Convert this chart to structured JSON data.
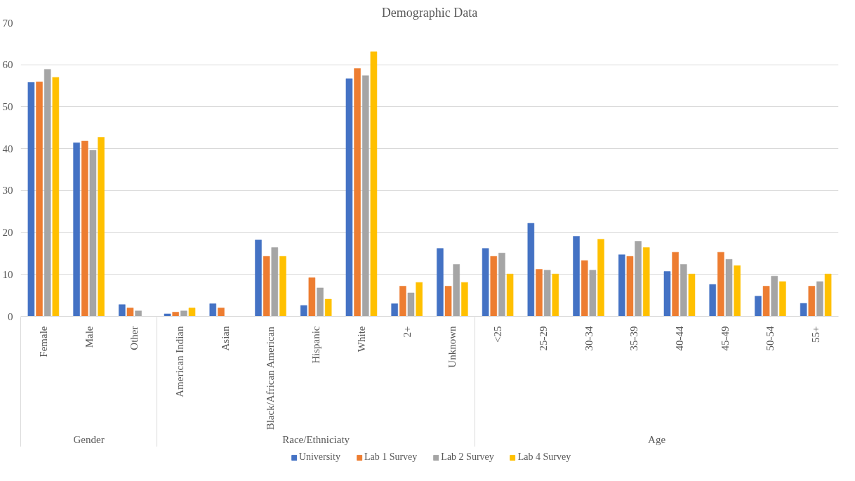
{
  "chart_data": {
    "type": "bar",
    "title": "Demographic Data",
    "categories": [
      "Female",
      "Male",
      "Other",
      "American Indian",
      "Asian",
      "Black/African American",
      "Hispanic",
      "White",
      "2+",
      "Unknown",
      "<25",
      "25-29",
      "30-34",
      "35-39",
      "40-44",
      "45-49",
      "50-54",
      "55+"
    ],
    "series": [
      {
        "name": "University",
        "color": "#4472c4",
        "values": [
          55.8,
          41.4,
          2.8,
          0.6,
          3.0,
          18.2,
          2.6,
          56.7,
          3.0,
          16.2,
          16.2,
          22.2,
          19.1,
          14.7,
          10.7,
          7.6,
          4.8,
          3.1
        ]
      },
      {
        "name": "Lab 1 Survey",
        "color": "#ed7d31",
        "values": [
          55.9,
          41.8,
          2.0,
          1.0,
          2.0,
          14.3,
          9.2,
          59.1,
          7.2,
          7.2,
          14.3,
          11.2,
          13.3,
          14.3,
          15.3,
          15.3,
          7.2,
          7.2
        ]
      },
      {
        "name": "Lab 2 Survey",
        "color": "#a5a5a5",
        "values": [
          58.9,
          39.6,
          1.3,
          1.3,
          null,
          16.4,
          6.8,
          57.4,
          5.6,
          12.4,
          15.1,
          11.0,
          11.0,
          17.9,
          12.4,
          13.6,
          9.6,
          8.3
        ]
      },
      {
        "name": "Lab 4 Survey",
        "color": "#ffc000",
        "values": [
          57.0,
          42.7,
          null,
          2.0,
          null,
          14.3,
          4.1,
          63.1,
          8.1,
          8.1,
          10.1,
          10.1,
          18.4,
          16.4,
          10.1,
          12.1,
          8.3,
          10.1
        ]
      }
    ],
    "annotations": [
      "Gender",
      "Race/Ethniciaty",
      "Age"
    ],
    "ylim": [
      0,
      70
    ],
    "yticks": [
      0,
      10,
      20,
      30,
      40,
      50,
      60,
      70
    ],
    "grid": "y",
    "legend": "bottom"
  }
}
